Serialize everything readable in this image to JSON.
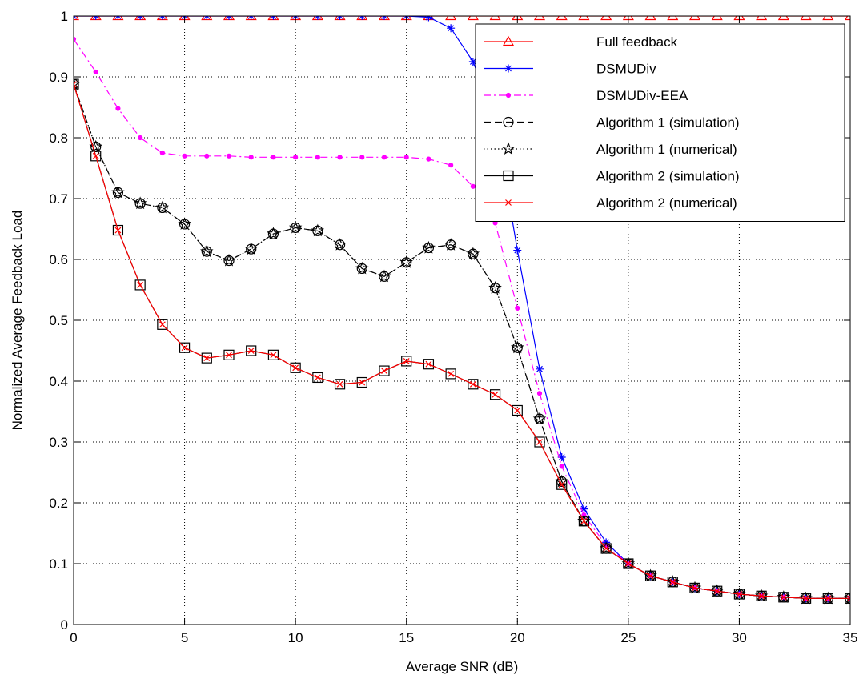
{
  "chart_data": {
    "type": "line",
    "title": "",
    "xlabel": "Average SNR (dB)",
    "ylabel": "Normalized Average Feedback Load",
    "xlim": [
      0,
      35
    ],
    "ylim": [
      0,
      1
    ],
    "xticks": [
      0,
      5,
      10,
      15,
      20,
      25,
      30,
      35
    ],
    "yticks": [
      0,
      0.1,
      0.2,
      0.3,
      0.4,
      0.5,
      0.6,
      0.7,
      0.8,
      0.9,
      1
    ],
    "grid": true,
    "legend_position": "top-right",
    "x": [
      0,
      1,
      2,
      3,
      4,
      5,
      6,
      7,
      8,
      9,
      10,
      11,
      12,
      13,
      14,
      15,
      16,
      17,
      18,
      19,
      20,
      21,
      22,
      23,
      24,
      25,
      26,
      27,
      28,
      29,
      30,
      31,
      32,
      33,
      34,
      35
    ],
    "series": [
      {
        "name": "Full feedback",
        "color": "#ff0000",
        "line": "solid",
        "marker": "triangle",
        "values": [
          1,
          1,
          1,
          1,
          1,
          1,
          1,
          1,
          1,
          1,
          1,
          1,
          1,
          1,
          1,
          1,
          1,
          1,
          1,
          1,
          1,
          1,
          1,
          1,
          1,
          1,
          1,
          1,
          1,
          1,
          1,
          1,
          1,
          1,
          1,
          1
        ]
      },
      {
        "name": "DSMUDiv",
        "color": "#0000ff",
        "line": "solid",
        "marker": "star",
        "values": [
          1,
          1,
          1,
          1,
          1,
          1,
          1,
          1,
          1,
          1,
          1,
          1,
          1,
          1,
          1,
          1,
          0.998,
          0.98,
          0.925,
          0.83,
          0.615,
          0.42,
          0.275,
          0.19,
          0.135,
          0.1,
          0.08,
          0.07,
          0.06,
          0.055,
          0.05,
          0.047,
          0.045,
          0.043,
          0.043,
          0.043
        ]
      },
      {
        "name": "DSMUDiv-EEA",
        "color": "#ff00ff",
        "line": "dashdot",
        "marker": "dot",
        "values": [
          0.962,
          0.908,
          0.848,
          0.8,
          0.775,
          0.77,
          0.77,
          0.77,
          0.768,
          0.768,
          0.768,
          0.768,
          0.768,
          0.768,
          0.768,
          0.768,
          0.765,
          0.755,
          0.72,
          0.66,
          0.52,
          0.38,
          0.26,
          0.18,
          0.13,
          0.1,
          0.08,
          0.07,
          0.06,
          0.055,
          0.05,
          0.047,
          0.045,
          0.043,
          0.043,
          0.043
        ]
      },
      {
        "name": "Algorithm 1 (simulation)",
        "color": "#000000",
        "line": "dashed",
        "marker": "circle",
        "values": [
          0.888,
          0.785,
          0.71,
          0.692,
          0.685,
          0.658,
          0.613,
          0.598,
          0.617,
          0.642,
          0.652,
          0.647,
          0.624,
          0.585,
          0.572,
          0.595,
          0.619,
          0.624,
          0.609,
          0.553,
          0.455,
          0.338,
          0.235,
          0.17,
          0.125,
          0.1,
          0.08,
          0.07,
          0.06,
          0.055,
          0.05,
          0.047,
          0.045,
          0.043,
          0.043,
          0.043
        ]
      },
      {
        "name": "Algorithm 1 (numerical)",
        "color": "#000000",
        "line": "dotted",
        "marker": "pentagram",
        "values": [
          0.888,
          0.785,
          0.71,
          0.692,
          0.685,
          0.658,
          0.613,
          0.598,
          0.617,
          0.642,
          0.652,
          0.647,
          0.624,
          0.585,
          0.572,
          0.595,
          0.619,
          0.624,
          0.609,
          0.553,
          0.455,
          0.338,
          0.235,
          0.17,
          0.125,
          0.1,
          0.08,
          0.07,
          0.06,
          0.055,
          0.05,
          0.047,
          0.045,
          0.043,
          0.043,
          0.043
        ]
      },
      {
        "name": "Algorithm 2 (simulation)",
        "color": "#000000",
        "line": "solid",
        "marker": "square",
        "values": [
          0.888,
          0.77,
          0.648,
          0.558,
          0.493,
          0.455,
          0.438,
          0.443,
          0.45,
          0.443,
          0.422,
          0.406,
          0.395,
          0.398,
          0.417,
          0.433,
          0.428,
          0.412,
          0.395,
          0.378,
          0.352,
          0.3,
          0.23,
          0.17,
          0.125,
          0.1,
          0.08,
          0.07,
          0.06,
          0.055,
          0.05,
          0.047,
          0.045,
          0.043,
          0.043,
          0.043
        ]
      },
      {
        "name": "Algorithm 2 (numerical)",
        "color": "#ff0000",
        "line": "solid",
        "marker": "x",
        "values": [
          0.888,
          0.77,
          0.648,
          0.558,
          0.493,
          0.455,
          0.438,
          0.443,
          0.45,
          0.443,
          0.422,
          0.406,
          0.395,
          0.398,
          0.417,
          0.433,
          0.428,
          0.412,
          0.395,
          0.378,
          0.352,
          0.3,
          0.23,
          0.17,
          0.125,
          0.1,
          0.08,
          0.07,
          0.06,
          0.055,
          0.05,
          0.047,
          0.045,
          0.043,
          0.043,
          0.043
        ]
      }
    ]
  }
}
